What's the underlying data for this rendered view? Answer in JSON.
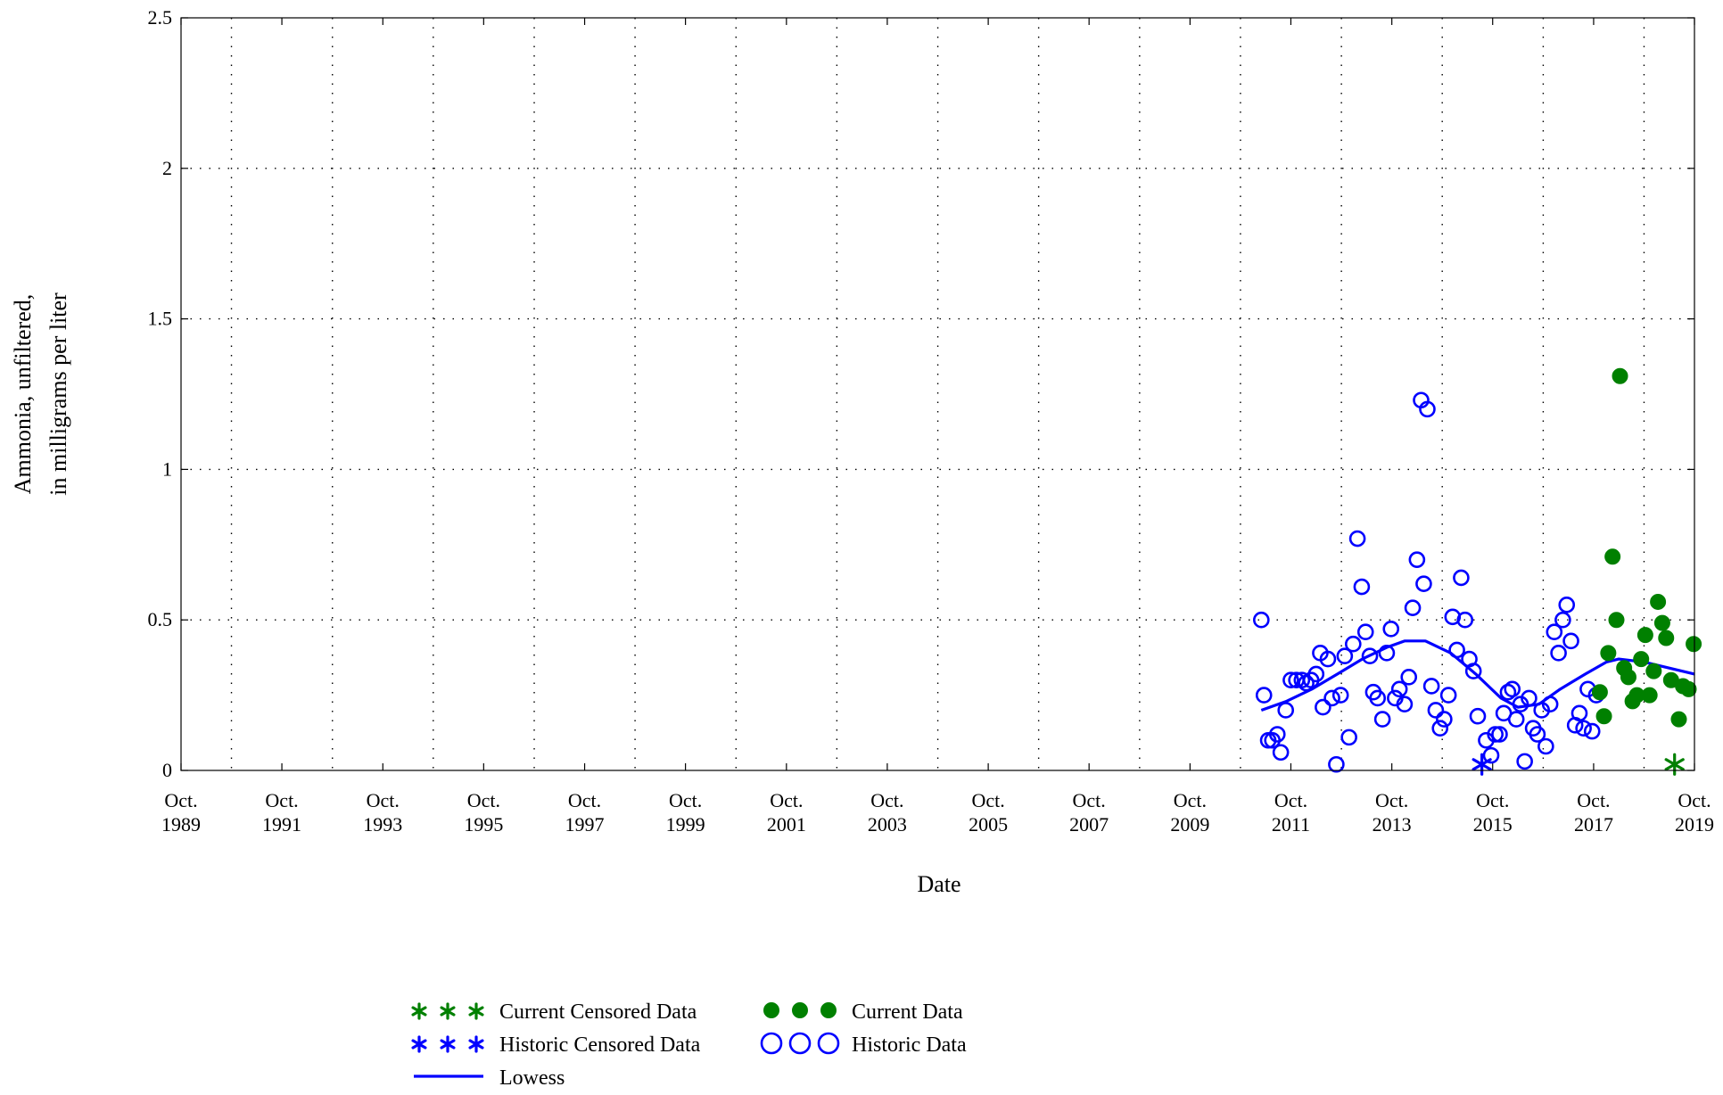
{
  "chart_data": {
    "type": "scatter",
    "title": "",
    "xlabel": "Date",
    "ylabel_lines": [
      "Ammonia, unfiltered,",
      "in milligrams per liter"
    ],
    "x_range": [
      "1989-10-01",
      "2019-10-01"
    ],
    "ylim": [
      0,
      2.5
    ],
    "y_ticks": [
      "0",
      "0.5",
      "1",
      "1.5",
      "2",
      "2.5"
    ],
    "x_ticks": [
      {
        "month": "Oct.",
        "year": "1989",
        "date": "1989-10-01"
      },
      {
        "month": "Oct.",
        "year": "1991",
        "date": "1991-10-01"
      },
      {
        "month": "Oct.",
        "year": "1993",
        "date": "1993-10-01"
      },
      {
        "month": "Oct.",
        "year": "1995",
        "date": "1995-10-01"
      },
      {
        "month": "Oct.",
        "year": "1997",
        "date": "1997-10-01"
      },
      {
        "month": "Oct.",
        "year": "1999",
        "date": "1999-10-01"
      },
      {
        "month": "Oct.",
        "year": "2001",
        "date": "2001-10-01"
      },
      {
        "month": "Oct.",
        "year": "2003",
        "date": "2003-10-01"
      },
      {
        "month": "Oct.",
        "year": "2005",
        "date": "2005-10-01"
      },
      {
        "month": "Oct.",
        "year": "2007",
        "date": "2007-10-01"
      },
      {
        "month": "Oct.",
        "year": "2009",
        "date": "2009-10-01"
      },
      {
        "month": "Oct.",
        "year": "2011",
        "date": "2011-10-01"
      },
      {
        "month": "Oct.",
        "year": "2013",
        "date": "2013-10-01"
      },
      {
        "month": "Oct.",
        "year": "2015",
        "date": "2015-10-01"
      },
      {
        "month": "Oct.",
        "year": "2017",
        "date": "2017-10-01"
      },
      {
        "month": "Oct.",
        "year": "2019",
        "date": "2019-10-01"
      }
    ],
    "grid": true,
    "legend_position": "bottom-center",
    "colors": {
      "historic": "#0000ff",
      "current": "#008000",
      "axis": "#000000",
      "grid": "#000000"
    },
    "series": [
      {
        "name": "Historic Data",
        "marker": "open-circle",
        "color": "#0000ff",
        "points": [
          [
            "2011-03-01",
            0.5
          ],
          [
            "2011-03-20",
            0.25
          ],
          [
            "2011-04-20",
            0.1
          ],
          [
            "2011-05-20",
            0.1
          ],
          [
            "2011-06-25",
            0.12
          ],
          [
            "2011-07-20",
            0.06
          ],
          [
            "2011-08-25",
            0.2
          ],
          [
            "2011-10-01",
            0.3
          ],
          [
            "2011-11-10",
            0.3
          ],
          [
            "2011-12-20",
            0.3
          ],
          [
            "2012-01-20",
            0.29
          ],
          [
            "2012-02-25",
            0.3
          ],
          [
            "2012-04-01",
            0.32
          ],
          [
            "2012-05-01",
            0.39
          ],
          [
            "2012-05-20",
            0.21
          ],
          [
            "2012-06-25",
            0.37
          ],
          [
            "2012-07-25",
            0.24
          ],
          [
            "2012-08-25",
            0.02
          ],
          [
            "2012-09-25",
            0.25
          ],
          [
            "2012-10-25",
            0.38
          ],
          [
            "2012-11-25",
            0.11
          ],
          [
            "2012-12-25",
            0.42
          ],
          [
            "2013-01-25",
            0.77
          ],
          [
            "2013-02-25",
            0.61
          ],
          [
            "2013-03-25",
            0.46
          ],
          [
            "2013-04-25",
            0.38
          ],
          [
            "2013-05-20",
            0.26
          ],
          [
            "2013-06-20",
            0.24
          ],
          [
            "2013-07-25",
            0.17
          ],
          [
            "2013-08-25",
            0.39
          ],
          [
            "2013-09-25",
            0.47
          ],
          [
            "2013-10-25",
            0.24
          ],
          [
            "2013-11-25",
            0.27
          ],
          [
            "2014-01-01",
            0.22
          ],
          [
            "2014-02-01",
            0.31
          ],
          [
            "2014-03-01",
            0.54
          ],
          [
            "2014-04-01",
            0.7
          ],
          [
            "2014-05-01",
            1.23
          ],
          [
            "2014-05-20",
            0.62
          ],
          [
            "2014-06-15",
            1.2
          ],
          [
            "2014-07-15",
            0.28
          ],
          [
            "2014-08-15",
            0.2
          ],
          [
            "2014-09-15",
            0.14
          ],
          [
            "2014-10-15",
            0.17
          ],
          [
            "2014-11-15",
            0.25
          ],
          [
            "2014-12-15",
            0.51
          ],
          [
            "2015-01-15",
            0.4
          ],
          [
            "2015-02-15",
            0.64
          ],
          [
            "2015-03-15",
            0.5
          ],
          [
            "2015-04-15",
            0.37
          ],
          [
            "2015-05-15",
            0.33
          ],
          [
            "2015-06-15",
            0.18
          ],
          [
            "2015-08-15",
            0.1
          ],
          [
            "2015-09-20",
            0.05
          ],
          [
            "2015-10-20",
            0.12
          ],
          [
            "2015-11-20",
            0.12
          ],
          [
            "2015-12-20",
            0.19
          ],
          [
            "2016-01-20",
            0.26
          ],
          [
            "2016-02-20",
            0.27
          ],
          [
            "2016-03-20",
            0.17
          ],
          [
            "2016-04-20",
            0.22
          ],
          [
            "2016-05-20",
            0.03
          ],
          [
            "2016-06-20",
            0.24
          ],
          [
            "2016-07-20",
            0.14
          ],
          [
            "2016-08-20",
            0.12
          ],
          [
            "2016-09-20",
            0.2
          ],
          [
            "2016-10-20",
            0.08
          ],
          [
            "2016-11-20",
            0.22
          ],
          [
            "2016-12-20",
            0.46
          ],
          [
            "2017-01-20",
            0.39
          ],
          [
            "2017-02-20",
            0.5
          ],
          [
            "2017-03-20",
            0.55
          ],
          [
            "2017-04-20",
            0.43
          ],
          [
            "2017-05-20",
            0.15
          ],
          [
            "2017-06-20",
            0.19
          ],
          [
            "2017-07-20",
            0.14
          ],
          [
            "2017-08-20",
            0.27
          ],
          [
            "2017-09-20",
            0.13
          ],
          [
            "2017-10-20",
            0.25
          ]
        ]
      },
      {
        "name": "Historic Censored Data",
        "marker": "asterisk",
        "color": "#0000ff",
        "points": [
          [
            "2015-07-15",
            0.02
          ]
        ]
      },
      {
        "name": "Current Data",
        "marker": "filled-circle",
        "color": "#008000",
        "points": [
          [
            "2017-11-15",
            0.26
          ],
          [
            "2017-12-15",
            0.18
          ],
          [
            "2018-01-15",
            0.39
          ],
          [
            "2018-02-15",
            0.71
          ],
          [
            "2018-03-15",
            0.5
          ],
          [
            "2018-04-10",
            1.31
          ],
          [
            "2018-05-10",
            0.34
          ],
          [
            "2018-06-10",
            0.31
          ],
          [
            "2018-07-10",
            0.23
          ],
          [
            "2018-08-10",
            0.25
          ],
          [
            "2018-09-10",
            0.37
          ],
          [
            "2018-10-10",
            0.45
          ],
          [
            "2018-11-10",
            0.25
          ],
          [
            "2018-12-10",
            0.33
          ],
          [
            "2019-01-10",
            0.56
          ],
          [
            "2019-02-10",
            0.49
          ],
          [
            "2019-03-10",
            0.44
          ],
          [
            "2019-04-15",
            0.3
          ],
          [
            "2019-06-10",
            0.17
          ],
          [
            "2019-07-10",
            0.28
          ],
          [
            "2019-08-20",
            0.27
          ],
          [
            "2019-09-25",
            0.42
          ]
        ]
      },
      {
        "name": "Current Censored Data",
        "marker": "asterisk",
        "color": "#008000",
        "points": [
          [
            "2019-05-10",
            0.02
          ]
        ]
      },
      {
        "name": "Lowess",
        "marker": "line",
        "color": "#0000ff",
        "points": [
          [
            "2011-03-01",
            0.2
          ],
          [
            "2011-09-01",
            0.23
          ],
          [
            "2012-03-01",
            0.27
          ],
          [
            "2012-09-01",
            0.32
          ],
          [
            "2013-03-01",
            0.37
          ],
          [
            "2013-09-01",
            0.41
          ],
          [
            "2014-01-01",
            0.43
          ],
          [
            "2014-06-01",
            0.43
          ],
          [
            "2014-12-01",
            0.39
          ],
          [
            "2015-06-01",
            0.32
          ],
          [
            "2015-12-01",
            0.24
          ],
          [
            "2016-04-01",
            0.21
          ],
          [
            "2016-09-01",
            0.22
          ],
          [
            "2017-02-01",
            0.27
          ],
          [
            "2017-08-01",
            0.32
          ],
          [
            "2018-01-01",
            0.36
          ],
          [
            "2018-04-01",
            0.37
          ],
          [
            "2018-10-01",
            0.36
          ],
          [
            "2019-04-01",
            0.34
          ],
          [
            "2019-10-01",
            0.32
          ]
        ]
      }
    ]
  },
  "legend": [
    {
      "key": "current-censored",
      "label": "Current Censored Data",
      "marker": "asterisk",
      "color": "#008000"
    },
    {
      "key": "historic-censored",
      "label": "Historic Censored Data",
      "marker": "asterisk",
      "color": "#0000ff"
    },
    {
      "key": "lowess",
      "label": "Lowess",
      "marker": "line",
      "color": "#0000ff"
    },
    {
      "key": "current",
      "label": "Current Data",
      "marker": "filled-circle",
      "color": "#008000"
    },
    {
      "key": "historic",
      "label": "Historic Data",
      "marker": "open-circle",
      "color": "#0000ff"
    }
  ]
}
